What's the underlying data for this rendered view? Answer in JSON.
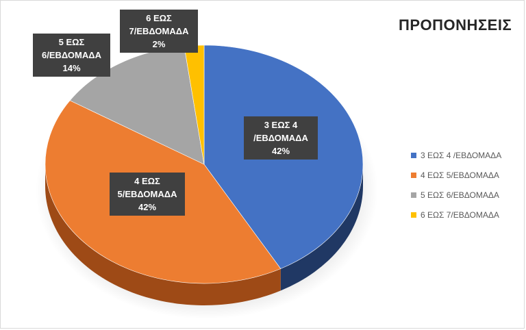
{
  "chart_data": {
    "type": "pie",
    "title": "ΠΡΟΠΟΝΗΣΕΙΣ",
    "categories": [
      "3 ΕΩΣ 4 /ΕΒΔΟΜΑΔΑ",
      "4 ΕΩΣ 5/ΕΒΔΟΜΑΔΑ",
      "5 ΕΩΣ 6/ΕΒΔΟΜΑΔΑ",
      "6 ΕΩΣ 7/ΕΒΔΟΜΑΔΑ"
    ],
    "values": [
      42,
      42,
      14,
      2
    ],
    "data_labels": [
      {
        "line1": "3 ΕΩΣ 4",
        "line2": "/ΕΒΔΟΜΑΔΑ",
        "pct": "42%"
      },
      {
        "line1": "4 ΕΩΣ",
        "line2": "5/ΕΒΔΟΜΑΔΑ",
        "pct": "42%"
      },
      {
        "line1": "5 ΕΩΣ",
        "line2": "6/ΕΒΔΟΜΑΔΑ",
        "pct": "14%"
      },
      {
        "line1": "6 ΕΩΣ",
        "line2": "7/ΕΒΔΟΜΑΔΑ",
        "pct": "2%"
      }
    ],
    "colors": [
      "#4472c4",
      "#ed7d31",
      "#a5a5a5",
      "#ffc000"
    ],
    "side_colors": [
      "#203864",
      "#9e4a16",
      "#6e6e6e",
      "#b38600"
    ],
    "legend_position": "right",
    "style": "3d-pie"
  }
}
